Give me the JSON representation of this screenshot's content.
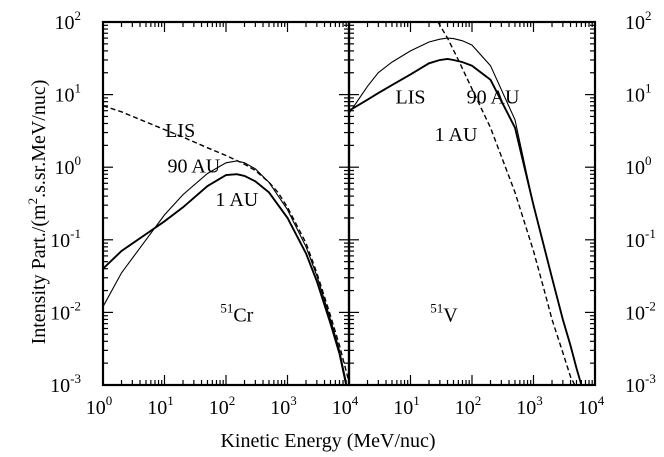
{
  "chart_data": {
    "type": "line",
    "ylabel": "Intensity Part./(m2.s.sr.MeV/nuc)",
    "ylabel_parts": {
      "pre": "Intensity Part./(m",
      "sup": "2",
      "post": ".s.sr.MeV/nuc)"
    },
    "xlabel": "Kinetic Energy (MeV/nuc)",
    "x_scale": "log",
    "y_scale": "log",
    "xlim": [
      1,
      10000
    ],
    "ylim": [
      0.001,
      100
    ],
    "x_ticks": [
      {
        "base": "10",
        "exp": "0",
        "value": 1
      },
      {
        "base": "10",
        "exp": "1",
        "value": 10
      },
      {
        "base": "10",
        "exp": "2",
        "value": 100
      },
      {
        "base": "10",
        "exp": "3",
        "value": 1000
      },
      {
        "base": "10",
        "exp": "4",
        "value": 10000
      }
    ],
    "y_ticks": [
      {
        "base": "10",
        "exp": "-3",
        "value": 0.001
      },
      {
        "base": "10",
        "exp": "-2",
        "value": 0.01
      },
      {
        "base": "10",
        "exp": "-1",
        "value": 0.1
      },
      {
        "base": "10",
        "exp": "0",
        "value": 1
      },
      {
        "base": "10",
        "exp": "1",
        "value": 10
      },
      {
        "base": "10",
        "exp": "2",
        "value": 100
      }
    ],
    "panels": [
      {
        "isotope": {
          "sup": "51",
          "sym": "Cr"
        },
        "annotations": [
          {
            "text": "LIS",
            "x": 18,
            "y": 2.6
          },
          {
            "text": "90 AU",
            "x": 30,
            "y": 0.85
          },
          {
            "text": "1 AU",
            "x": 150,
            "y": 0.29
          }
        ],
        "series": [
          {
            "name": "LIS",
            "style": "dashed",
            "x": [
              1,
              2,
              5,
              10,
              20,
              50,
              100,
              200,
              300,
              500,
              700,
              1000,
              2000,
              3000,
              5000,
              7000,
              10000
            ],
            "y": [
              7,
              5.8,
              4.2,
              3.3,
              2.6,
              1.85,
              1.45,
              1.1,
              0.9,
              0.62,
              0.45,
              0.28,
              0.09,
              0.035,
              0.009,
              0.0035,
              0.0011
            ]
          },
          {
            "name": "90 AU",
            "style": "thin",
            "x": [
              1,
              2,
              5,
              10,
              20,
              50,
              100,
              150,
              200,
              300,
              500,
              1000,
              2000,
              3000,
              5000,
              7000,
              9000
            ],
            "y": [
              0.012,
              0.035,
              0.1,
              0.22,
              0.42,
              0.82,
              1.15,
              1.22,
              1.15,
              0.95,
              0.62,
              0.26,
              0.08,
              0.032,
              0.008,
              0.003,
              0.0011
            ]
          },
          {
            "name": "1 AU",
            "style": "thick",
            "x": [
              1,
              2,
              5,
              10,
              20,
              50,
              100,
              150,
              200,
              300,
              500,
              1000,
              2000,
              3000,
              5000,
              7000,
              9000
            ],
            "y": [
              0.04,
              0.07,
              0.12,
              0.18,
              0.28,
              0.55,
              0.78,
              0.8,
              0.76,
              0.64,
              0.45,
              0.2,
              0.065,
              0.027,
              0.007,
              0.0027,
              0.001
            ]
          }
        ]
      },
      {
        "isotope": {
          "sup": "51",
          "sym": "V"
        },
        "annotations": [
          {
            "text": "LIS",
            "x": 10,
            "y": 7.5
          },
          {
            "text": "90 AU",
            "x": 220,
            "y": 7.5
          },
          {
            "text": "1 AU",
            "x": 55,
            "y": 2.3
          }
        ],
        "series": [
          {
            "name": "LIS",
            "style": "dashed",
            "x": [
              28,
              40,
              60,
              100,
              200,
              500,
              1000,
              1500,
              2000,
              3000,
              4000,
              5000
            ],
            "y": [
              100,
              60,
              30,
              12,
              3.5,
              0.45,
              0.07,
              0.02,
              0.008,
              0.0028,
              0.0013,
              0.0009
            ]
          },
          {
            "name": "90 AU",
            "style": "thin",
            "x": [
              1,
              2,
              3,
              5,
              10,
              20,
              30,
              40,
              50,
              70,
              100,
              200,
              500,
              1000,
              2000,
              3000,
              4000,
              5000,
              6000
            ],
            "y": [
              5.5,
              13,
              20,
              28,
              40,
              53,
              58,
              60,
              59,
              55,
              48,
              25,
              4.5,
              0.3,
              0.03,
              0.008,
              0.0035,
              0.0017,
              0.001
            ]
          },
          {
            "name": "1 AU",
            "style": "thick",
            "x": [
              1,
              2,
              3,
              5,
              10,
              20,
              30,
              40,
              50,
              70,
              100,
              200,
              500,
              1000,
              2000,
              3000,
              4000,
              5000,
              6000
            ],
            "y": [
              6,
              8.5,
              10.5,
              13.5,
              19,
              27,
              30,
              31,
              30,
              28,
              25,
              16,
              3.5,
              0.3,
              0.03,
              0.008,
              0.0035,
              0.0017,
              0.001
            ]
          }
        ]
      }
    ]
  }
}
